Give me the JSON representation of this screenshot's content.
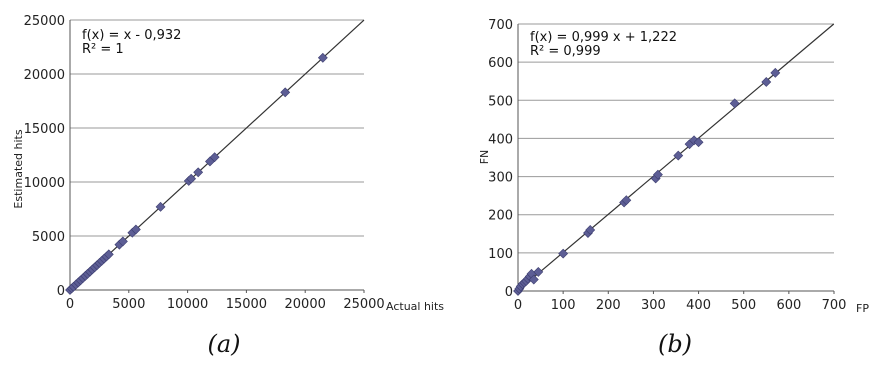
{
  "chart_data": [
    {
      "type": "scatter",
      "caption": "(a)",
      "xlabel": "Actual hits",
      "ylabel": "Estimated hits",
      "xlim": [
        0,
        25000
      ],
      "ylim": [
        0,
        25000
      ],
      "x_ticks": [
        "0",
        "5000",
        "10000",
        "15000",
        "20000",
        "25000"
      ],
      "y_ticks": [
        "0",
        "5000",
        "10000",
        "15000",
        "20000",
        "25000"
      ],
      "grid": "horizontal",
      "annotations": [
        "f(x) =  x - 0,932",
        "R² =  1"
      ],
      "trendline": {
        "slope": 1,
        "intercept": -0.932
      },
      "points": {
        "x": [
          0,
          150,
          300,
          500,
          700,
          900,
          1100,
          1300,
          1500,
          1700,
          1900,
          2100,
          2300,
          2500,
          2700,
          2900,
          3100,
          3300,
          4200,
          4500,
          5300,
          5600,
          7700,
          10100,
          10300,
          10900,
          11900,
          12300,
          18300,
          21500
        ],
        "y": [
          0,
          150,
          300,
          500,
          700,
          900,
          1100,
          1300,
          1500,
          1700,
          1900,
          2100,
          2300,
          2500,
          2700,
          2900,
          3100,
          3300,
          4200,
          4500,
          5300,
          5600,
          7700,
          10100,
          10300,
          10900,
          11900,
          12300,
          18300,
          21500
        ]
      }
    },
    {
      "type": "scatter",
      "caption": "(b)",
      "xlabel": "FP",
      "ylabel": "FN",
      "xlim": [
        0,
        700
      ],
      "ylim": [
        0,
        700
      ],
      "x_ticks": [
        "0",
        "100",
        "200",
        "300",
        "400",
        "500",
        "600",
        "700"
      ],
      "y_ticks": [
        "0",
        "100",
        "200",
        "300",
        "400",
        "500",
        "600",
        "700"
      ],
      "grid": "horizontal",
      "annotations": [
        "f(x) = 0,999 x + 1,222",
        "R² =  0,999"
      ],
      "trendline": {
        "slope": 0.999,
        "intercept": 1.222
      },
      "points": {
        "x": [
          0,
          3,
          6,
          10,
          14,
          18,
          22,
          26,
          30,
          35,
          45,
          100,
          155,
          160,
          235,
          240,
          305,
          310,
          355,
          380,
          390,
          400,
          480,
          550,
          570
        ],
        "y": [
          0,
          6,
          12,
          18,
          22,
          26,
          32,
          38,
          45,
          30,
          50,
          98,
          152,
          160,
          232,
          238,
          295,
          305,
          355,
          385,
          395,
          390,
          492,
          548,
          572
        ]
      }
    }
  ]
}
